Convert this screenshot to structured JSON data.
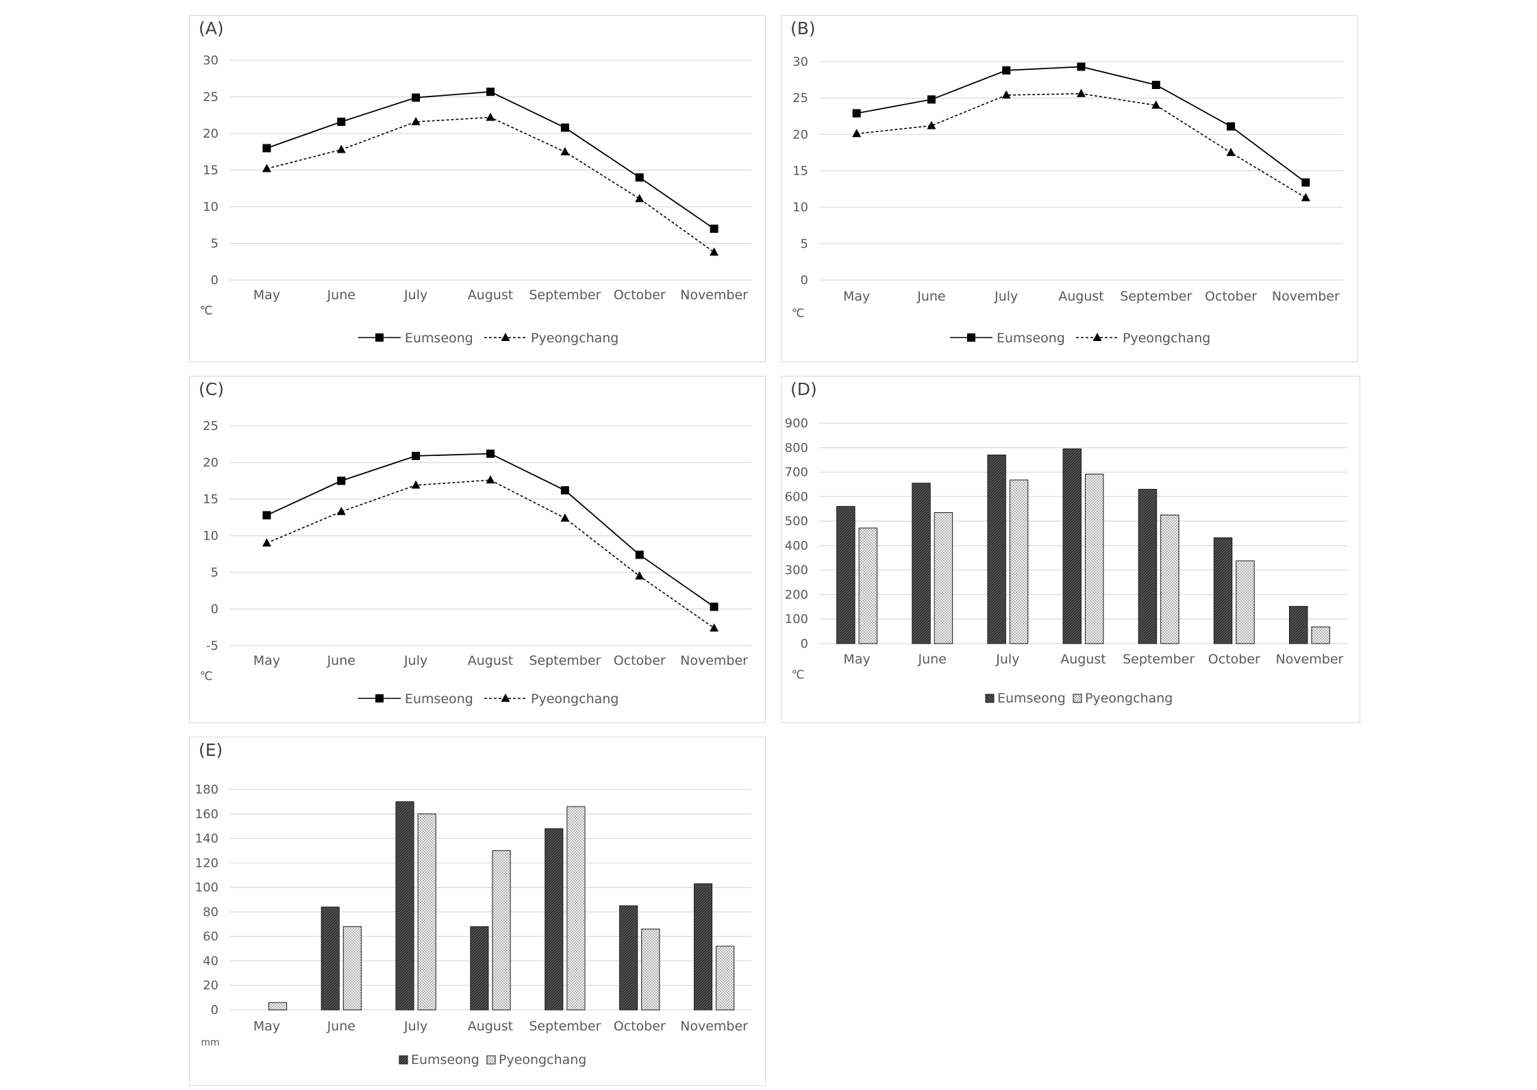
{
  "legend": {
    "eumseong": "Eumseong",
    "pyeongchang": "Pyeongchang"
  },
  "colors": {
    "grid": "#d9d9d9",
    "axis_text": "#595959",
    "line": "#000000",
    "bar_dark": "#4a4a4a",
    "bar_light": "#bdbdbd"
  },
  "chart_data": [
    {
      "panel": "(A)",
      "type": "line",
      "categories": [
        "May",
        "June",
        "July",
        "August",
        "September",
        "October",
        "November"
      ],
      "unit": "℃",
      "ylim": [
        0,
        30
      ],
      "ystep": 5,
      "series": [
        {
          "name": "Eumseong",
          "marker": "square",
          "dash": "solid",
          "values": [
            18.0,
            21.6,
            24.9,
            25.7,
            20.8,
            14.0,
            7.0
          ]
        },
        {
          "name": "Pyeongchang",
          "marker": "triangle",
          "dash": "dashed",
          "values": [
            15.2,
            17.8,
            21.6,
            22.2,
            17.5,
            11.1,
            3.8
          ]
        }
      ]
    },
    {
      "panel": "(B)",
      "type": "line",
      "categories": [
        "May",
        "June",
        "July",
        "August",
        "September",
        "October",
        "November"
      ],
      "unit": "℃",
      "ylim": [
        0,
        30
      ],
      "ystep": 5,
      "series": [
        {
          "name": "Eumseong",
          "marker": "square",
          "dash": "solid",
          "values": [
            22.9,
            24.8,
            28.8,
            29.3,
            26.8,
            21.1,
            13.4
          ]
        },
        {
          "name": "Pyeongchang",
          "marker": "triangle",
          "dash": "dashed",
          "values": [
            20.1,
            21.2,
            25.4,
            25.6,
            24.0,
            17.5,
            11.3
          ]
        }
      ]
    },
    {
      "panel": "(C)",
      "type": "line",
      "categories": [
        "May",
        "June",
        "July",
        "August",
        "September",
        "October",
        "November"
      ],
      "unit": "℃",
      "ylim": [
        -5,
        25
      ],
      "ystep": 5,
      "series": [
        {
          "name": "Eumseong",
          "marker": "square",
          "dash": "solid",
          "values": [
            12.8,
            17.5,
            20.9,
            21.2,
            16.2,
            7.4,
            0.3
          ]
        },
        {
          "name": "Pyeongchang",
          "marker": "triangle",
          "dash": "dashed",
          "values": [
            9.0,
            13.3,
            16.9,
            17.6,
            12.4,
            4.5,
            -2.6
          ]
        }
      ]
    },
    {
      "panel": "(D)",
      "type": "bar",
      "categories": [
        "May",
        "June",
        "July",
        "August",
        "September",
        "October",
        "November"
      ],
      "unit": "℃",
      "ylim": [
        0,
        900
      ],
      "ystep": 100,
      "series": [
        {
          "name": "Eumseong",
          "pattern": "dark",
          "values": [
            560,
            655,
            770,
            795,
            630,
            432,
            152
          ]
        },
        {
          "name": "Pyeongchang",
          "pattern": "light",
          "values": [
            472,
            535,
            668,
            692,
            525,
            338,
            68
          ]
        }
      ]
    },
    {
      "panel": "(E)",
      "type": "bar",
      "categories": [
        "May",
        "June",
        "July",
        "August",
        "September",
        "October",
        "November"
      ],
      "unit": "mm",
      "ylim": [
        0,
        180
      ],
      "ystep": 20,
      "series": [
        {
          "name": "Eumseong",
          "pattern": "dark",
          "values": [
            0,
            84,
            170,
            68,
            148,
            85,
            103
          ]
        },
        {
          "name": "Pyeongchang",
          "pattern": "light",
          "values": [
            6,
            68,
            160,
            130,
            166,
            66,
            52
          ]
        }
      ]
    }
  ]
}
